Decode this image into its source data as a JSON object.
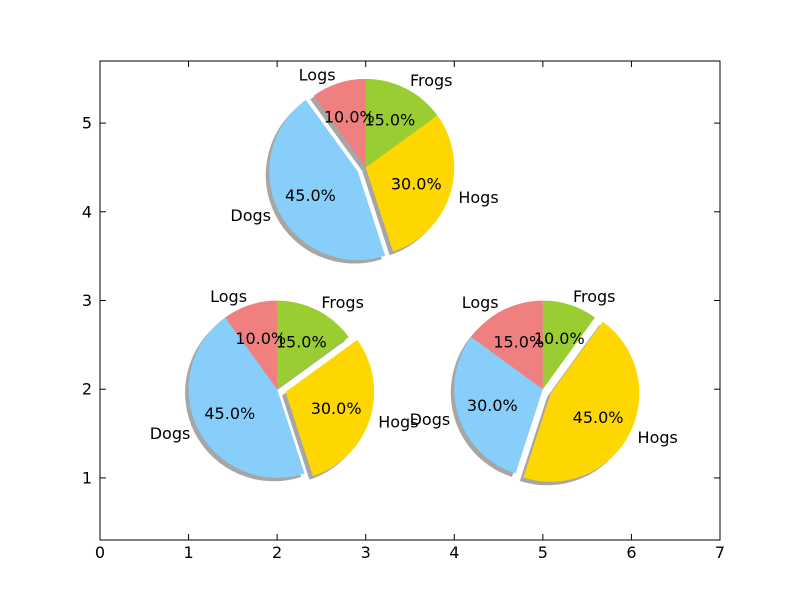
{
  "chart_data": {
    "type": "pie",
    "title": "",
    "xlabel": "",
    "ylabel": "",
    "xlim": [
      0,
      7
    ],
    "ylim": [
      0.3,
      5.7
    ],
    "xticks": [
      "0",
      "1",
      "2",
      "3",
      "4",
      "5",
      "6",
      "7"
    ],
    "yticks": [
      "1",
      "2",
      "3",
      "4",
      "5"
    ],
    "grid": false,
    "shadow": true,
    "start_angle_deg": 90,
    "colors": [
      "#f08080",
      "#87cefa",
      "#ffd700",
      "#9acd32"
    ],
    "pies": [
      {
        "center": [
          3,
          4.5
        ],
        "radius": 1,
        "slices": [
          {
            "label": "Logs",
            "value": 10,
            "pct": "10.0%",
            "explode": 0
          },
          {
            "label": "Dogs",
            "value": 45,
            "pct": "45.0%",
            "explode": 0.1
          },
          {
            "label": "Hogs",
            "value": 30,
            "pct": "30.0%",
            "explode": 0
          },
          {
            "label": "Frogs",
            "value": 15,
            "pct": "15.0%",
            "explode": 0
          }
        ]
      },
      {
        "center": [
          2,
          2
        ],
        "radius": 1,
        "slices": [
          {
            "label": "Logs",
            "value": 10,
            "pct": "10.0%",
            "explode": 0
          },
          {
            "label": "Dogs",
            "value": 45,
            "pct": "45.0%",
            "explode": 0
          },
          {
            "label": "Hogs",
            "value": 30,
            "pct": "30.0%",
            "explode": 0.1
          },
          {
            "label": "Frogs",
            "value": 15,
            "pct": "15.0%",
            "explode": 0
          }
        ]
      },
      {
        "center": [
          5,
          2
        ],
        "radius": 1,
        "slices": [
          {
            "label": "Logs",
            "value": 15,
            "pct": "15.0%",
            "explode": 0
          },
          {
            "label": "Dogs",
            "value": 30,
            "pct": "30.0%",
            "explode": 0
          },
          {
            "label": "Hogs",
            "value": 45,
            "pct": "45.0%",
            "explode": 0.1
          },
          {
            "label": "Frogs",
            "value": 10,
            "pct": "10.0%",
            "explode": 0
          }
        ]
      }
    ]
  }
}
